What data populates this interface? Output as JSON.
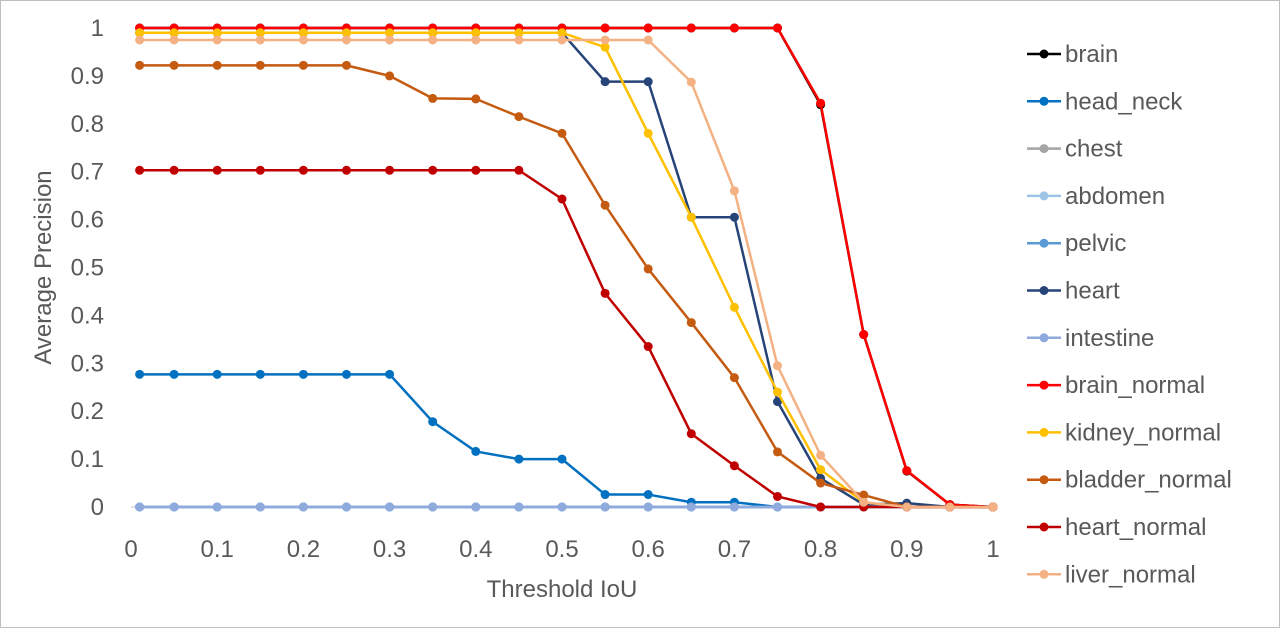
{
  "chart_data": {
    "type": "line",
    "title": "",
    "xlabel": "Threshold IoU",
    "ylabel": "Average Precision",
    "xlim": [
      0,
      1
    ],
    "ylim": [
      0,
      1
    ],
    "grid": false,
    "legend_position": "right",
    "x_tick_labels": [
      "0",
      "0.1",
      "0.2",
      "0.3",
      "0.4",
      "0.5",
      "0.6",
      "0.7",
      "0.8",
      "0.9",
      "1"
    ],
    "y_tick_labels": [
      "0",
      "0.1",
      "0.2",
      "0.3",
      "0.4",
      "0.5",
      "0.6",
      "0.7",
      "0.8",
      "0.9",
      "1"
    ],
    "x": [
      0.01,
      0.05,
      0.1,
      0.15,
      0.2,
      0.25,
      0.3,
      0.35,
      0.4,
      0.45,
      0.5,
      0.55,
      0.6,
      0.65,
      0.7,
      0.75,
      0.8,
      0.85,
      0.9,
      0.95,
      1.0
    ],
    "series": [
      {
        "name": "brain",
        "color": "#000000",
        "values": [
          1,
          1,
          1,
          1,
          1,
          1,
          1,
          1,
          1,
          1,
          1,
          1,
          1,
          1,
          1,
          1,
          0.84,
          0.36,
          0.075,
          0.005,
          0
        ]
      },
      {
        "name": "head_neck",
        "color": "#0070c0",
        "values": [
          0.277,
          0.277,
          0.277,
          0.277,
          0.277,
          0.277,
          0.277,
          0.178,
          0.116,
          0.1,
          0.1,
          0.026,
          0.026,
          0.01,
          0.01,
          0,
          0,
          0,
          0,
          0,
          0
        ]
      },
      {
        "name": "chest",
        "color": "#a5a5a5",
        "values": [
          0,
          0,
          0,
          0,
          0,
          0,
          0,
          0,
          0,
          0,
          0,
          0,
          0,
          0,
          0,
          0,
          0,
          0,
          0,
          0,
          0
        ]
      },
      {
        "name": "abdomen",
        "color": "#9dc3e6",
        "values": [
          0,
          0,
          0,
          0,
          0,
          0,
          0,
          0,
          0,
          0,
          0,
          0,
          0,
          0,
          0,
          0,
          0,
          0,
          0,
          0,
          0
        ]
      },
      {
        "name": "pelvic",
        "color": "#5b9bd5",
        "values": [
          0,
          0,
          0,
          0,
          0,
          0,
          0,
          0,
          0,
          0,
          0,
          0,
          0,
          0,
          0,
          0,
          0,
          0,
          0,
          0,
          0
        ]
      },
      {
        "name": "heart",
        "color": "#264478",
        "values": [
          0.99,
          0.99,
          0.99,
          0.99,
          0.99,
          0.99,
          0.99,
          0.99,
          0.99,
          0.99,
          0.99,
          0.888,
          0.888,
          0.605,
          0.605,
          0.22,
          0.06,
          0.005,
          0.008,
          0,
          0
        ]
      },
      {
        "name": "intestine",
        "color": "#8faadc",
        "values": [
          0,
          0,
          0,
          0,
          0,
          0,
          0,
          0,
          0,
          0,
          0,
          0,
          0,
          0,
          0,
          0,
          0,
          0,
          0,
          0,
          0
        ]
      },
      {
        "name": "brain_normal",
        "color": "#ff0000",
        "values": [
          1,
          1,
          1,
          1,
          1,
          1,
          1,
          1,
          1,
          1,
          1,
          1,
          1,
          1,
          1,
          1,
          0.843,
          0.36,
          0.076,
          0.005,
          0
        ]
      },
      {
        "name": "kidney_normal",
        "color": "#ffc000",
        "values": [
          0.99,
          0.99,
          0.99,
          0.99,
          0.99,
          0.99,
          0.99,
          0.99,
          0.99,
          0.99,
          0.99,
          0.96,
          0.78,
          0.605,
          0.417,
          0.24,
          0.078,
          0.01,
          0,
          0,
          0
        ]
      },
      {
        "name": "bladder_normal",
        "color": "#c55a11",
        "values": [
          0.922,
          0.922,
          0.922,
          0.922,
          0.922,
          0.922,
          0.9,
          0.853,
          0.852,
          0.815,
          0.78,
          0.63,
          0.497,
          0.385,
          0.27,
          0.115,
          0.05,
          0.025,
          0,
          0,
          0
        ]
      },
      {
        "name": "heart_normal",
        "color": "#c00000",
        "values": [
          0.703,
          0.703,
          0.703,
          0.703,
          0.703,
          0.703,
          0.703,
          0.703,
          0.703,
          0.703,
          0.643,
          0.446,
          0.335,
          0.153,
          0.086,
          0.022,
          0,
          0,
          0,
          0,
          0
        ]
      },
      {
        "name": "liver_normal",
        "color": "#f4b183",
        "values": [
          0.975,
          0.975,
          0.975,
          0.975,
          0.975,
          0.975,
          0.975,
          0.975,
          0.975,
          0.975,
          0.975,
          0.975,
          0.975,
          0.887,
          0.66,
          0.295,
          0.108,
          0.01,
          0,
          0,
          0
        ]
      }
    ]
  }
}
